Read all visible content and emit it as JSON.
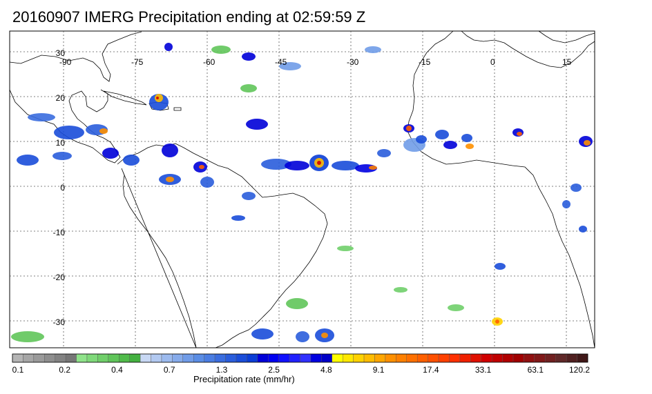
{
  "title": "20160907 IMERG Precipitation ending at 02:59:59 Z",
  "map": {
    "longitude_labels": [
      "-90",
      "-75",
      "-60",
      "-45",
      "-30",
      "-15",
      "0",
      "15"
    ],
    "latitude_labels": [
      "30",
      "20",
      "10",
      "0",
      "-10",
      "-20",
      "-30"
    ],
    "ocean_color": "#ffffff",
    "coast_color": "#000000",
    "grid_color": "#555555"
  },
  "colorbar": {
    "title": "Precipitation rate (mm/hr)",
    "tick_labels": [
      "0.1",
      "0.2",
      "0.4",
      "0.7",
      "1.3",
      "2.5",
      "4.8",
      "9.1",
      "17.4",
      "33.1",
      "63.1",
      "120.2"
    ],
    "colors": [
      "#b4b4b4",
      "#a6a6a6",
      "#9a9a9a",
      "#8e8e8e",
      "#828282",
      "#767676",
      "#8fe38a",
      "#7fd97a",
      "#70cf6a",
      "#60c55a",
      "#50bb4a",
      "#44b140",
      "#c8d8f4",
      "#b2c9f1",
      "#9cbaee",
      "#86abeb",
      "#709ce8",
      "#5a8de5",
      "#4a7de2",
      "#3a6ddf",
      "#2a5ddc",
      "#1a4dd9",
      "#0a3dd6",
      "#0000d8",
      "#0000f0",
      "#1010ff",
      "#2020ff",
      "#3030ff",
      "#0000e0",
      "#0000c8",
      "#ffff00",
      "#ffe800",
      "#ffd200",
      "#ffbc00",
      "#ffa600",
      "#ff9000",
      "#ff8000",
      "#ff7000",
      "#ff6000",
      "#ff5000",
      "#ff4000",
      "#ff3000",
      "#f02000",
      "#e01000",
      "#d00000",
      "#c00000",
      "#b00000",
      "#a00000",
      "#901010",
      "#801818",
      "#702020",
      "#602828",
      "#502020",
      "#401818"
    ]
  }
}
